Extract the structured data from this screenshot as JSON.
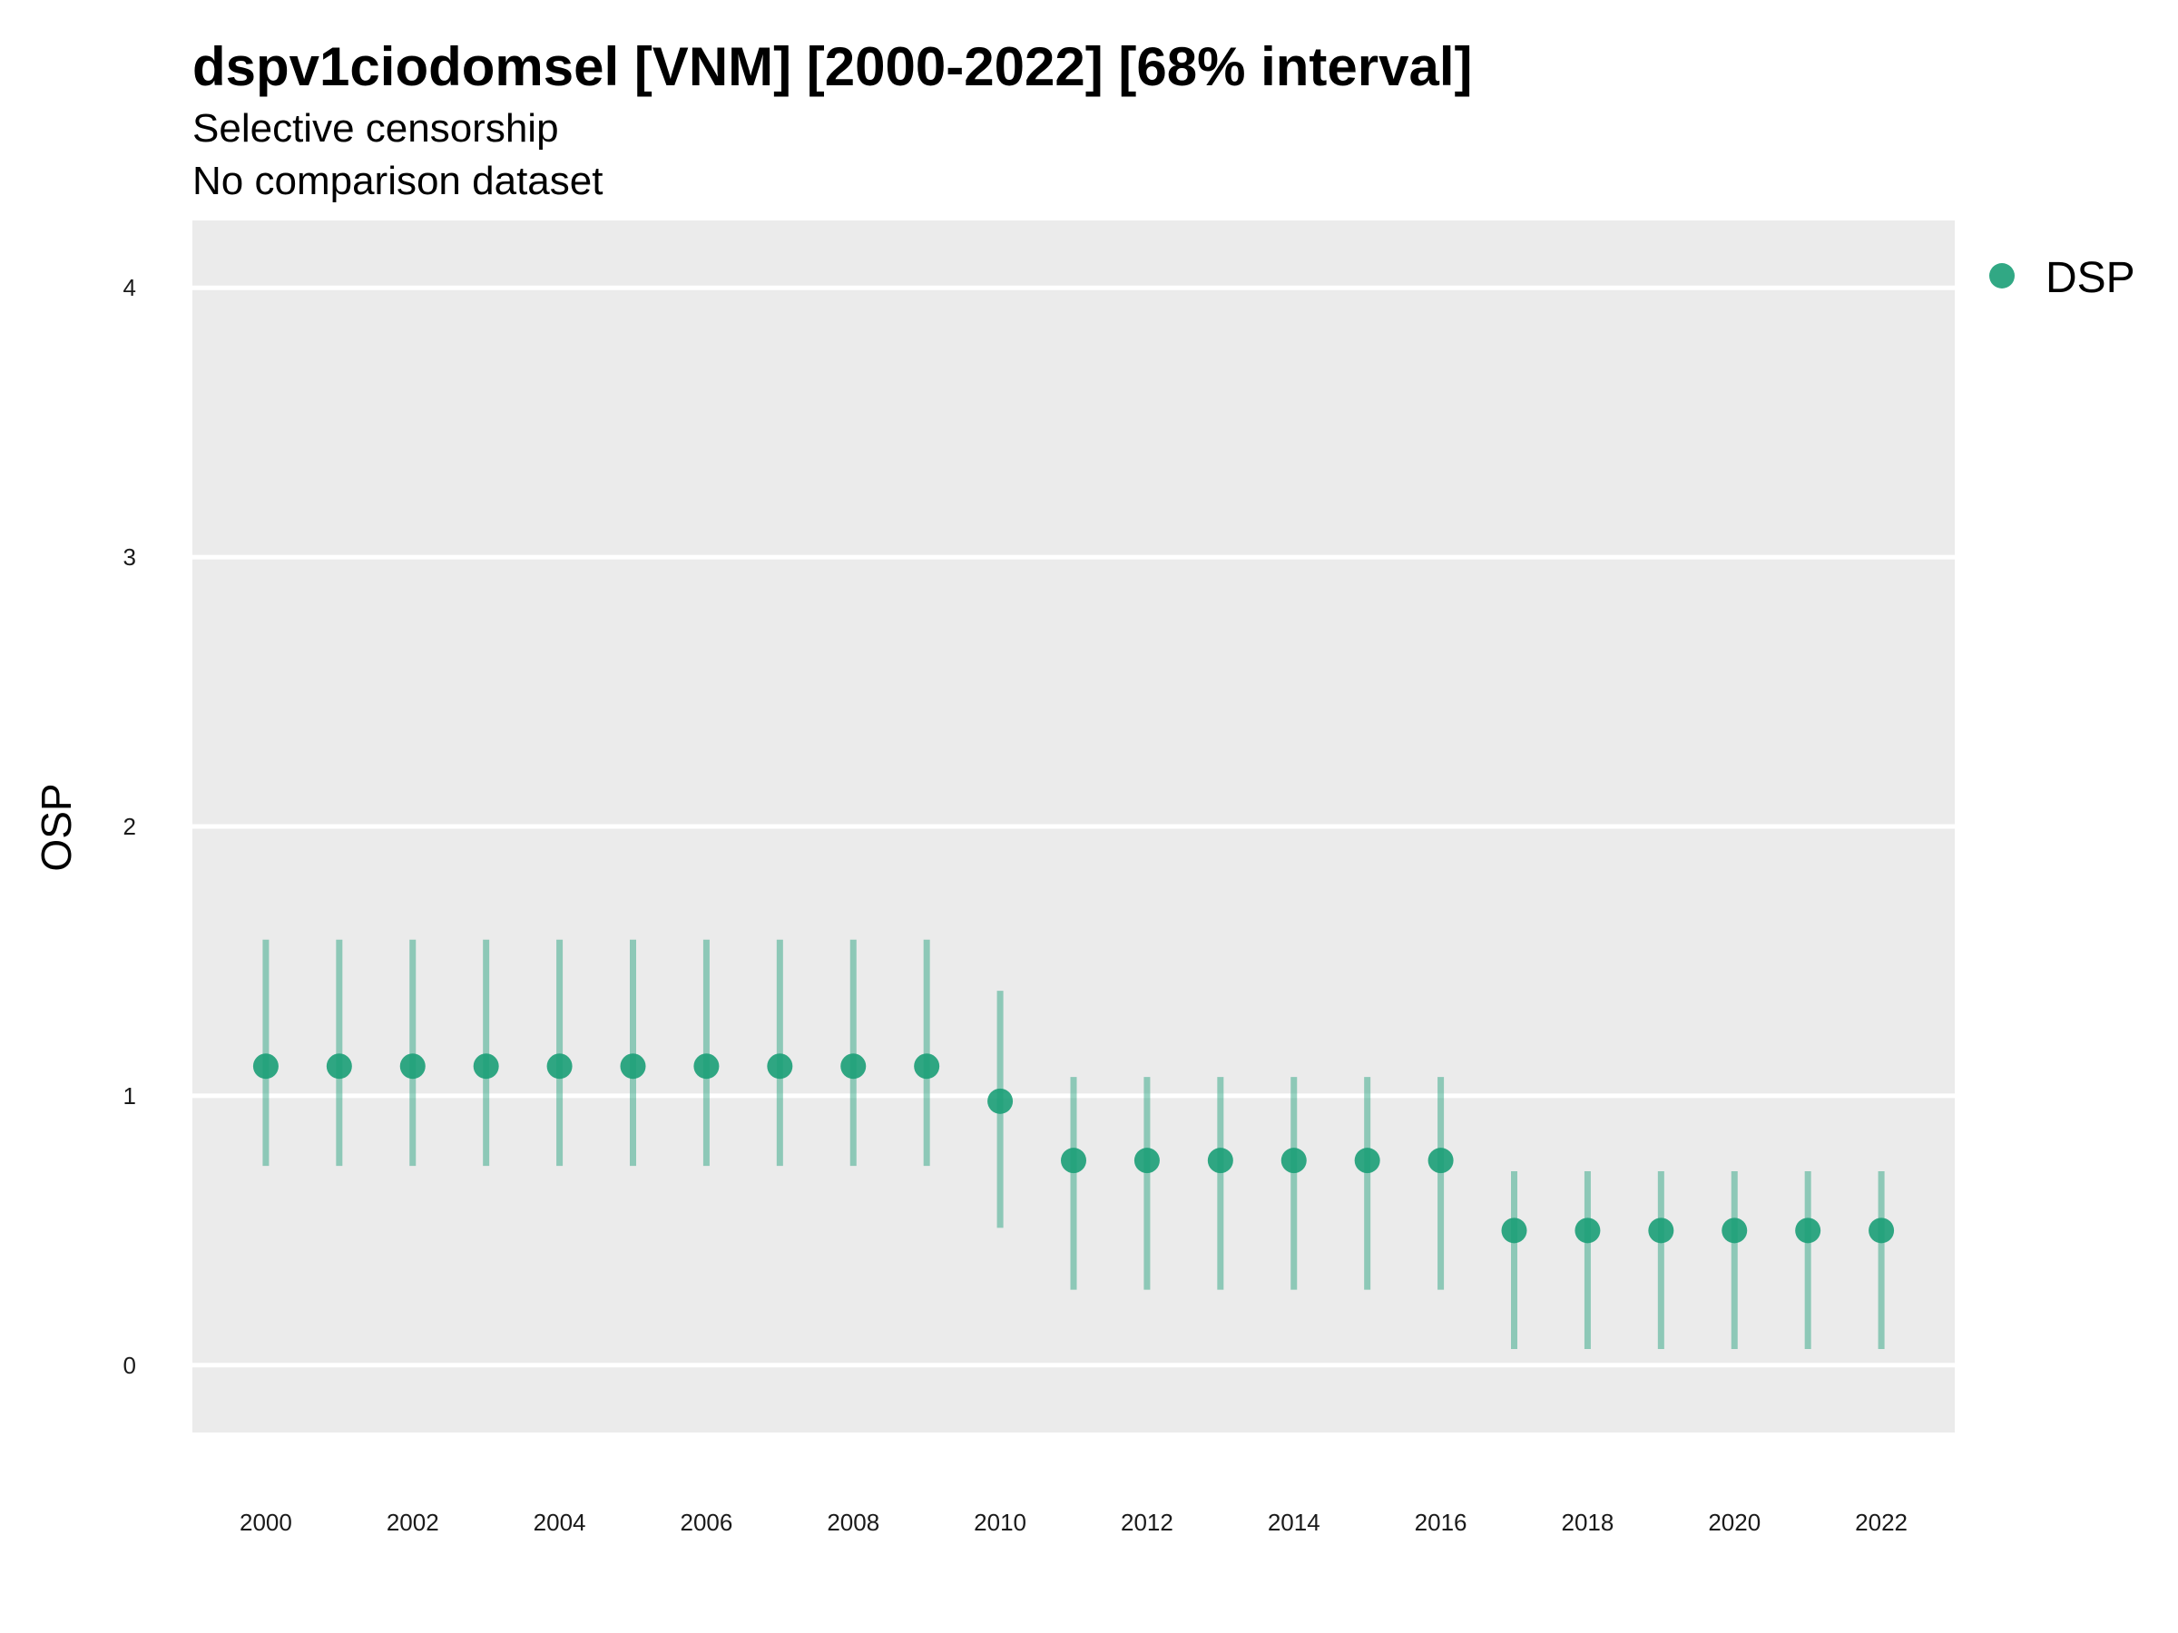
{
  "chart_data": {
    "type": "scatter",
    "title": "dspv1ciodomsel [VNM] [2000-2022] [68% interval]",
    "subtitles": [
      "Selective censorship",
      "No comparison dataset"
    ],
    "xlabel": "",
    "ylabel": "OSP",
    "x_tick_labels": [
      "2000",
      "2002",
      "2004",
      "2006",
      "2008",
      "2010",
      "2012",
      "2014",
      "2016",
      "2018",
      "2020",
      "2022"
    ],
    "y_tick_labels": [
      "0",
      "1",
      "2",
      "3",
      "4"
    ],
    "xlim": [
      1999,
      2023
    ],
    "ylim": [
      -0.25,
      4.25
    ],
    "grid": true,
    "legend_position": "right-top",
    "series": [
      {
        "name": "DSP",
        "color": "#1b9e77",
        "points": [
          {
            "x": 2000,
            "y": 1.11,
            "low": 0.74,
            "high": 1.58
          },
          {
            "x": 2001,
            "y": 1.11,
            "low": 0.74,
            "high": 1.58
          },
          {
            "x": 2002,
            "y": 1.11,
            "low": 0.74,
            "high": 1.58
          },
          {
            "x": 2003,
            "y": 1.11,
            "low": 0.74,
            "high": 1.58
          },
          {
            "x": 2004,
            "y": 1.11,
            "low": 0.74,
            "high": 1.58
          },
          {
            "x": 2005,
            "y": 1.11,
            "low": 0.74,
            "high": 1.58
          },
          {
            "x": 2006,
            "y": 1.11,
            "low": 0.74,
            "high": 1.58
          },
          {
            "x": 2007,
            "y": 1.11,
            "low": 0.74,
            "high": 1.58
          },
          {
            "x": 2008,
            "y": 1.11,
            "low": 0.74,
            "high": 1.58
          },
          {
            "x": 2009,
            "y": 1.11,
            "low": 0.74,
            "high": 1.58
          },
          {
            "x": 2010,
            "y": 0.98,
            "low": 0.51,
            "high": 1.39
          },
          {
            "x": 2011,
            "y": 0.76,
            "low": 0.28,
            "high": 1.07
          },
          {
            "x": 2012,
            "y": 0.76,
            "low": 0.28,
            "high": 1.07
          },
          {
            "x": 2013,
            "y": 0.76,
            "low": 0.28,
            "high": 1.07
          },
          {
            "x": 2014,
            "y": 0.76,
            "low": 0.28,
            "high": 1.07
          },
          {
            "x": 2015,
            "y": 0.76,
            "low": 0.28,
            "high": 1.07
          },
          {
            "x": 2016,
            "y": 0.76,
            "low": 0.28,
            "high": 1.07
          },
          {
            "x": 2017,
            "y": 0.5,
            "low": 0.06,
            "high": 0.72
          },
          {
            "x": 2018,
            "y": 0.5,
            "low": 0.06,
            "high": 0.72
          },
          {
            "x": 2019,
            "y": 0.5,
            "low": 0.06,
            "high": 0.72
          },
          {
            "x": 2020,
            "y": 0.5,
            "low": 0.06,
            "high": 0.72
          },
          {
            "x": 2021,
            "y": 0.5,
            "low": 0.06,
            "high": 0.72
          },
          {
            "x": 2022,
            "y": 0.5,
            "low": 0.06,
            "high": 0.72
          }
        ]
      }
    ]
  }
}
